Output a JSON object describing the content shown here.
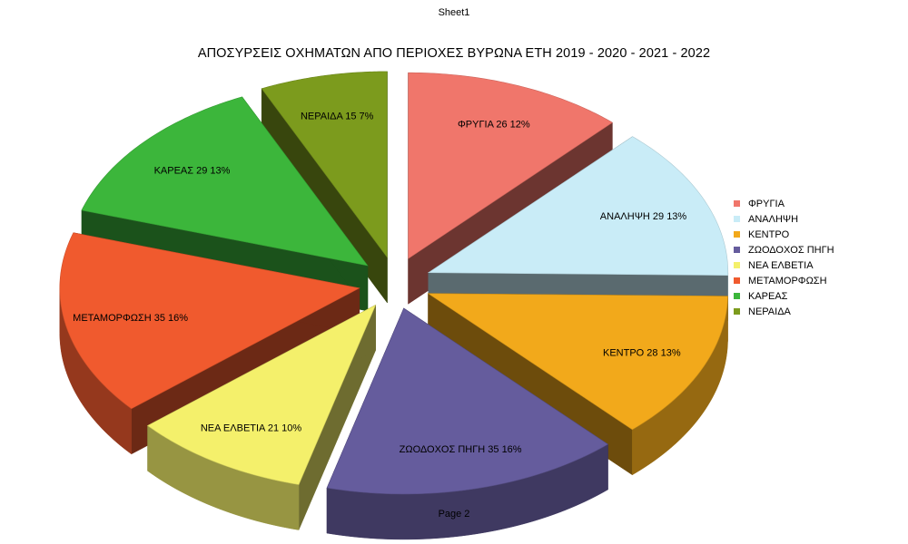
{
  "header": {
    "sheet": "Sheet1"
  },
  "footer": {
    "page": "Page 2"
  },
  "chart_data": {
    "type": "pie",
    "title": "ΑΠΟΣΥΡΣΕΙΣ ΟΧΗΜΑΤΩΝ ΑΠΟ ΠΕΡΙΟΧΕΣ ΒΥΡΩΝΑ ΕΤΗ 2019 - 2020 - 2021 - 2022",
    "legend_position": "right",
    "slices": [
      {
        "label": "ΦΡΥΓΙΑ",
        "value": 26,
        "percent": "12%",
        "color": "#f0766b"
      },
      {
        "label": "ΑΝΑΛΗΨΗ",
        "value": 29,
        "percent": "13%",
        "color": "#c9ecf7"
      },
      {
        "label": "ΚΕΝΤΡΟ",
        "value": 28,
        "percent": "13%",
        "color": "#f2a91b"
      },
      {
        "label": "ΖΩΟΔΟΧΟΣ ΠΗΓΗ",
        "value": 35,
        "percent": "16%",
        "color": "#655c9d"
      },
      {
        "label": "ΝΕΑ ΕΛΒΕΤΙΑ",
        "value": 21,
        "percent": "10%",
        "color": "#f4f06b"
      },
      {
        "label": "ΜΕΤΑΜΟΡΦΩΣΗ",
        "value": 35,
        "percent": "16%",
        "color": "#f05a2e"
      },
      {
        "label": "ΚΑΡΕΑΣ",
        "value": 29,
        "percent": "13%",
        "color": "#3cb63b"
      },
      {
        "label": "ΝΕΡΑΙΔΑ",
        "value": 15,
        "percent": "7%",
        "color": "#7c9b1d"
      }
    ]
  }
}
